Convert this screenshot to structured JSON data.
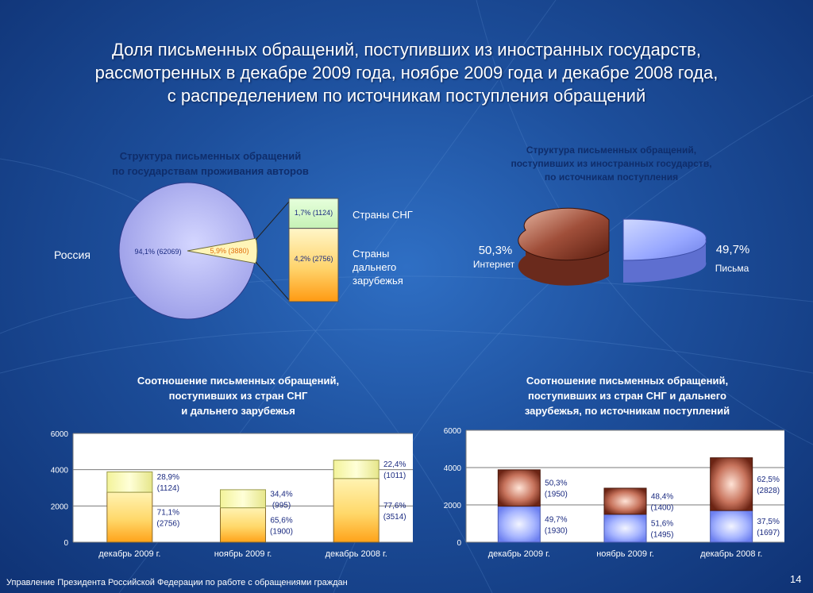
{
  "title_lines": [
    "Доля письменных обращений, поступивших из иностранных государств,",
    "рассмотренных в декабре 2009 года, ноябре 2009 года и декабре 2008 года,",
    "с распределением по источникам поступления обращений"
  ],
  "footer": "Управление Президента Российской Федерации по работе с обращениями граждан",
  "page_number": "14",
  "colors": {
    "accent_light": "#ffe98a",
    "accent_dark": "#ff9d12",
    "internet": "#9c4e3a",
    "letters": "#8fa8ff",
    "pie_main": "#b6b7f2"
  },
  "chart_data": [
    {
      "type": "pie",
      "title_lines": [
        "Структура письменных обращений",
        "по государствам проживания авторов"
      ],
      "slices": [
        {
          "name": "Россия",
          "label": "94,1% (62069)",
          "percent": 94.1,
          "value": 62069
        },
        {
          "name": "",
          "label": "5,9% (3880)",
          "percent": 5.9,
          "value": 3880
        }
      ],
      "breakdown": [
        {
          "name": "Страны СНГ",
          "label": "1,7% (1124)",
          "percent": 1.7,
          "value": 1124
        },
        {
          "name_lines": [
            "Страны",
            "дальнего",
            "зарубежья"
          ],
          "label": "4,2% (2756)",
          "percent": 4.2,
          "value": 2756
        }
      ]
    },
    {
      "type": "pie",
      "title_lines": [
        "Структура письменных обращений,",
        "поступивших из иностранных государств,",
        "по источникам поступления"
      ],
      "slices": [
        {
          "name": "Интернет",
          "label": "50,3%",
          "percent": 50.3
        },
        {
          "name": "Письма",
          "label": "49,7%",
          "percent": 49.7
        }
      ]
    },
    {
      "type": "bar",
      "stacked": true,
      "title_lines": [
        "Соотношение письменных обращений,",
        "поступивших из стран СНГ",
        "и дальнего зарубежья"
      ],
      "categories": [
        "декабрь 2009 г.",
        "ноябрь 2009 г.",
        "декабрь 2008 г."
      ],
      "ylim": [
        0,
        6000
      ],
      "yticks": [
        0,
        2000,
        4000,
        6000
      ],
      "grid": true,
      "series": [
        {
          "values": [
            2756,
            1900,
            3514
          ],
          "labels": [
            [
              "71,1%",
              "(2756)"
            ],
            [
              "65,6%",
              "(1900)"
            ],
            [
              "77,6%",
              "(3514)"
            ]
          ]
        },
        {
          "values": [
            1124,
            995,
            1011
          ],
          "labels": [
            [
              "28,9%",
              "(1124)"
            ],
            [
              "34,4%",
              "(995)"
            ],
            [
              "22,4%",
              "(1011)"
            ]
          ]
        }
      ]
    },
    {
      "type": "bar",
      "stacked": true,
      "title_lines": [
        "Соотношение письменных обращений,",
        "поступивших из стран СНГ и дальнего",
        "зарубежья, по источникам поступлений"
      ],
      "categories": [
        "декабрь 2009 г.",
        "ноябрь 2009 г.",
        "декабрь 2008 г."
      ],
      "ylim": [
        0,
        6000
      ],
      "yticks": [
        0,
        2000,
        4000,
        6000
      ],
      "grid": true,
      "series": [
        {
          "values": [
            1930,
            1495,
            1697
          ],
          "labels": [
            [
              "49,7%",
              "(1930)"
            ],
            [
              "51,6%",
              "(1495)"
            ],
            [
              "37,5%",
              "(1697)"
            ]
          ]
        },
        {
          "values": [
            1950,
            1400,
            2828
          ],
          "labels": [
            [
              "50,3%",
              "(1950)"
            ],
            [
              "48,4%",
              "(1400)"
            ],
            [
              "62,5%",
              "(2828)"
            ]
          ]
        }
      ]
    }
  ]
}
